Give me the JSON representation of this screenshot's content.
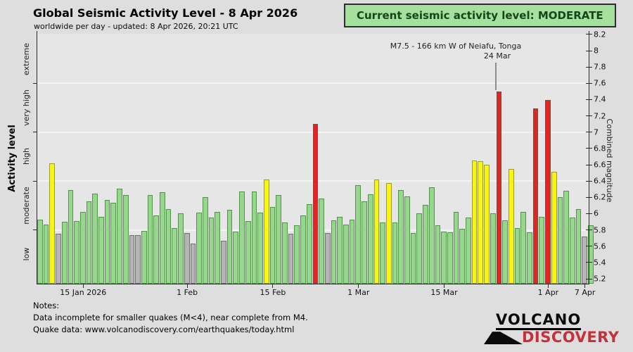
{
  "header": {
    "title": "Global Seismic Activity Level - 8 Apr 2026",
    "subtitle": "worldwide per day - updated:  8 Apr 2026, 20:21 UTC",
    "badge": "Current seismic activity level: MODERATE"
  },
  "notes": {
    "heading": "Notes:",
    "line1": "Data incomplete for smaller quakes (M<4), near complete from M4.",
    "line2": "Quake data: www.volcanodiscovery.com/earthquakes/today.html"
  },
  "logo": {
    "line1": "VOLCANO",
    "line2": "DISCOVERY"
  },
  "colors": {
    "background": "#dedede",
    "plot_background": "#e6e6e6",
    "badge_fill": "#a5e09e",
    "logo_red": "#c5303a",
    "bar_styles": {
      "green": {
        "fill": "#97d78d",
        "stroke": "#53924a"
      },
      "yellow": {
        "fill": "#f8f513",
        "stroke": "#9a9b31"
      },
      "red": {
        "fill": "#e32420",
        "stroke": "#7d4a42"
      },
      "gray": {
        "fill": "#b5b5b5",
        "stroke": "#6f6f6f"
      }
    }
  },
  "chart_data": {
    "type": "bar",
    "title": "Global Seismic Activity Level - 8 Apr 2026",
    "ylabel_left": "Activity level",
    "ylabel_right": "Combined magnitude",
    "ylim": [
      5.2,
      8.2
    ],
    "grid": true,
    "grid_magnitudes": [
      5.8,
      6.4,
      7.0,
      7.6
    ],
    "right_tick_labels": [
      "5.2",
      "5.4",
      "5.6",
      "5.8",
      "6",
      "6.2",
      "6.4",
      "6.6",
      "6.8",
      "7",
      "7.2",
      "7.4",
      "7.6",
      "7.8",
      "8",
      "8.2"
    ],
    "activity_levels": [
      "low",
      "moderate",
      "high",
      "very high",
      "extreme"
    ],
    "level_boundaries": [
      5.2,
      5.8,
      6.4,
      7.0,
      7.6,
      8.2
    ],
    "level_colors": {
      "low": "gray",
      "moderate": "green",
      "high": "yellow",
      "very high": "red"
    },
    "x_ticks": [
      {
        "label": "15 Jan 2026",
        "day_index": 7
      },
      {
        "label": "1 Feb",
        "day_index": 24
      },
      {
        "label": "15 Feb",
        "day_index": 38
      },
      {
        "label": "1 Mar",
        "day_index": 52
      },
      {
        "label": "15 Mar",
        "day_index": 66
      },
      {
        "label": "1 Apr",
        "day_index": 83
      },
      {
        "label": "7 Apr",
        "day_index": 89
      }
    ],
    "annotation": {
      "line1": "M7.5 - 166 km W of Neiafu, Tonga",
      "line2": "24 Mar",
      "day_index": 75,
      "magnitude": 7.5
    },
    "series": [
      {
        "date": "8 Jan",
        "magnitude": 5.93,
        "color": "green"
      },
      {
        "date": "9 Jan",
        "magnitude": 5.87,
        "color": "green"
      },
      {
        "date": "10 Jan",
        "magnitude": 6.62,
        "color": "yellow"
      },
      {
        "date": "11 Jan",
        "magnitude": 5.75,
        "color": "gray"
      },
      {
        "date": "12 Jan",
        "magnitude": 5.9,
        "color": "green"
      },
      {
        "date": "13 Jan",
        "magnitude": 6.29,
        "color": "green"
      },
      {
        "date": "14 Jan",
        "magnitude": 5.91,
        "color": "green"
      },
      {
        "date": "15 Jan",
        "magnitude": 6.02,
        "color": "green"
      },
      {
        "date": "16 Jan",
        "magnitude": 6.15,
        "color": "green"
      },
      {
        "date": "17 Jan",
        "magnitude": 6.25,
        "color": "green"
      },
      {
        "date": "18 Jan",
        "magnitude": 5.96,
        "color": "green"
      },
      {
        "date": "19 Jan",
        "magnitude": 6.17,
        "color": "green"
      },
      {
        "date": "20 Jan",
        "magnitude": 6.13,
        "color": "green"
      },
      {
        "date": "21 Jan",
        "magnitude": 6.31,
        "color": "green"
      },
      {
        "date": "22 Jan",
        "magnitude": 6.23,
        "color": "green"
      },
      {
        "date": "23 Jan",
        "magnitude": 5.74,
        "color": "gray"
      },
      {
        "date": "24 Jan",
        "magnitude": 5.74,
        "color": "gray"
      },
      {
        "date": "25 Jan",
        "magnitude": 5.79,
        "color": "green"
      },
      {
        "date": "26 Jan",
        "magnitude": 6.23,
        "color": "green"
      },
      {
        "date": "27 Jan",
        "magnitude": 5.98,
        "color": "green"
      },
      {
        "date": "28 Jan",
        "magnitude": 6.26,
        "color": "green"
      },
      {
        "date": "29 Jan",
        "magnitude": 6.06,
        "color": "green"
      },
      {
        "date": "30 Jan",
        "magnitude": 5.82,
        "color": "green"
      },
      {
        "date": "31 Jan",
        "magnitude": 6.0,
        "color": "green"
      },
      {
        "date": "1 Feb",
        "magnitude": 5.76,
        "color": "gray"
      },
      {
        "date": "2 Feb",
        "magnitude": 5.63,
        "color": "gray"
      },
      {
        "date": "3 Feb",
        "magnitude": 6.01,
        "color": "green"
      },
      {
        "date": "4 Feb",
        "magnitude": 6.2,
        "color": "green"
      },
      {
        "date": "5 Feb",
        "magnitude": 5.95,
        "color": "green"
      },
      {
        "date": "6 Feb",
        "magnitude": 6.02,
        "color": "green"
      },
      {
        "date": "7 Feb",
        "magnitude": 5.67,
        "color": "gray"
      },
      {
        "date": "8 Feb",
        "magnitude": 6.05,
        "color": "green"
      },
      {
        "date": "9 Feb",
        "magnitude": 5.78,
        "color": "green"
      },
      {
        "date": "10 Feb",
        "magnitude": 6.27,
        "color": "green"
      },
      {
        "date": "11 Feb",
        "magnitude": 5.91,
        "color": "green"
      },
      {
        "date": "12 Feb",
        "magnitude": 6.27,
        "color": "green"
      },
      {
        "date": "13 Feb",
        "magnitude": 6.01,
        "color": "green"
      },
      {
        "date": "14 Feb",
        "magnitude": 6.42,
        "color": "yellow"
      },
      {
        "date": "15 Feb",
        "magnitude": 6.08,
        "color": "green"
      },
      {
        "date": "16 Feb",
        "magnitude": 6.23,
        "color": "green"
      },
      {
        "date": "17 Feb",
        "magnitude": 5.89,
        "color": "green"
      },
      {
        "date": "18 Feb",
        "magnitude": 5.75,
        "color": "gray"
      },
      {
        "date": "19 Feb",
        "magnitude": 5.86,
        "color": "green"
      },
      {
        "date": "20 Feb",
        "magnitude": 5.98,
        "color": "green"
      },
      {
        "date": "21 Feb",
        "magnitude": 6.12,
        "color": "green"
      },
      {
        "date": "22 Feb",
        "magnitude": 7.1,
        "color": "red"
      },
      {
        "date": "23 Feb",
        "magnitude": 6.19,
        "color": "green"
      },
      {
        "date": "24 Feb",
        "magnitude": 5.76,
        "color": "gray"
      },
      {
        "date": "25 Feb",
        "magnitude": 5.92,
        "color": "green"
      },
      {
        "date": "26 Feb",
        "magnitude": 5.96,
        "color": "green"
      },
      {
        "date": "27 Feb",
        "magnitude": 5.87,
        "color": "green"
      },
      {
        "date": "28 Feb",
        "magnitude": 5.93,
        "color": "green"
      },
      {
        "date": "1 Mar",
        "magnitude": 6.35,
        "color": "green"
      },
      {
        "date": "2 Mar",
        "magnitude": 6.15,
        "color": "green"
      },
      {
        "date": "3 Mar",
        "magnitude": 6.24,
        "color": "green"
      },
      {
        "date": "4 Mar",
        "magnitude": 6.42,
        "color": "yellow"
      },
      {
        "date": "5 Mar",
        "magnitude": 5.89,
        "color": "green"
      },
      {
        "date": "6 Mar",
        "magnitude": 6.38,
        "color": "yellow"
      },
      {
        "date": "7 Mar",
        "magnitude": 5.89,
        "color": "green"
      },
      {
        "date": "8 Mar",
        "magnitude": 6.29,
        "color": "green"
      },
      {
        "date": "9 Mar",
        "magnitude": 6.21,
        "color": "green"
      },
      {
        "date": "10 Mar",
        "magnitude": 5.76,
        "color": "green"
      },
      {
        "date": "11 Mar",
        "magnitude": 6.0,
        "color": "green"
      },
      {
        "date": "12 Mar",
        "magnitude": 6.11,
        "color": "green"
      },
      {
        "date": "13 Mar",
        "magnitude": 6.32,
        "color": "green"
      },
      {
        "date": "14 Mar",
        "magnitude": 5.86,
        "color": "green"
      },
      {
        "date": "15 Mar",
        "magnitude": 5.78,
        "color": "green"
      },
      {
        "date": "16 Mar",
        "magnitude": 5.77,
        "color": "green"
      },
      {
        "date": "17 Mar",
        "magnitude": 6.02,
        "color": "green"
      },
      {
        "date": "18 Mar",
        "magnitude": 5.81,
        "color": "green"
      },
      {
        "date": "19 Mar",
        "magnitude": 5.95,
        "color": "green"
      },
      {
        "date": "20 Mar",
        "magnitude": 6.65,
        "color": "yellow"
      },
      {
        "date": "21 Mar",
        "magnitude": 6.64,
        "color": "yellow"
      },
      {
        "date": "22 Mar",
        "magnitude": 6.6,
        "color": "yellow"
      },
      {
        "date": "23 Mar",
        "magnitude": 6.0,
        "color": "green"
      },
      {
        "date": "24 Mar",
        "magnitude": 7.5,
        "color": "red"
      },
      {
        "date": "25 Mar",
        "magnitude": 5.92,
        "color": "green"
      },
      {
        "date": "26 Mar",
        "magnitude": 6.55,
        "color": "yellow"
      },
      {
        "date": "27 Mar",
        "magnitude": 5.82,
        "color": "green"
      },
      {
        "date": "28 Mar",
        "magnitude": 6.02,
        "color": "green"
      },
      {
        "date": "29 Mar",
        "magnitude": 5.77,
        "color": "green"
      },
      {
        "date": "30 Mar",
        "magnitude": 7.29,
        "color": "red"
      },
      {
        "date": "31 Mar",
        "magnitude": 5.96,
        "color": "green"
      },
      {
        "date": "1 Apr",
        "magnitude": 7.4,
        "color": "red"
      },
      {
        "date": "2 Apr",
        "magnitude": 6.51,
        "color": "yellow"
      },
      {
        "date": "3 Apr",
        "magnitude": 6.2,
        "color": "green"
      },
      {
        "date": "4 Apr",
        "magnitude": 6.28,
        "color": "green"
      },
      {
        "date": "5 Apr",
        "magnitude": 5.95,
        "color": "green"
      },
      {
        "date": "6 Apr",
        "magnitude": 6.06,
        "color": "green"
      },
      {
        "date": "7 Apr",
        "magnitude": 5.72,
        "color": "gray"
      },
      {
        "date": "8 Apr",
        "magnitude": 5.86,
        "color": "green"
      }
    ]
  }
}
